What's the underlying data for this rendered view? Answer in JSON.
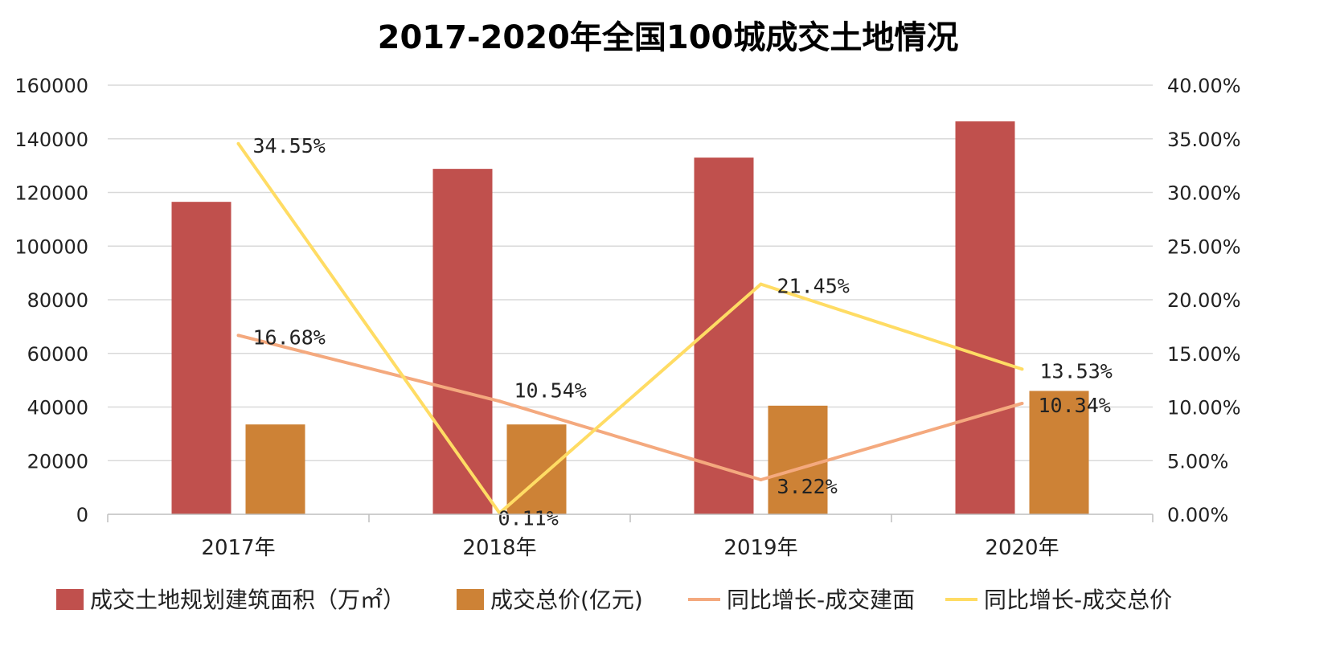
{
  "chart_data": {
    "type": "bar",
    "title": "2017-2020年全国100城成交土地情况",
    "categories": [
      "2017年",
      "2018年",
      "2019年",
      "2020年"
    ],
    "y_left": {
      "min": 0,
      "max": 160000,
      "ticks": [
        "0",
        "20000",
        "40000",
        "60000",
        "80000",
        "100000",
        "120000",
        "140000",
        "160000"
      ]
    },
    "y_right": {
      "min": 0,
      "max": 40,
      "ticks": [
        "0.00%",
        "5.00%",
        "10.00%",
        "15.00%",
        "20.00%",
        "25.00%",
        "30.00%",
        "35.00%",
        "40.00%"
      ]
    },
    "grid": true,
    "legend_position": "bottom",
    "series": [
      {
        "name": "成交土地规划建筑面积（万㎡）",
        "type": "bar",
        "axis": "left",
        "color": "#C0504D",
        "values": [
          116500,
          128800,
          133000,
          146500
        ]
      },
      {
        "name": "成交总价(亿元)",
        "type": "bar",
        "axis": "left",
        "color": "#CD8236",
        "values": [
          33500,
          33500,
          40500,
          46000
        ]
      },
      {
        "name": "同比增长-成交建面",
        "type": "line",
        "axis": "right",
        "color": "#F4A97E",
        "values": [
          16.68,
          10.54,
          3.22,
          10.34
        ],
        "labels": [
          "16.68%",
          "10.54%",
          "3.22%",
          "10.34%"
        ]
      },
      {
        "name": "同比增长-成交总价",
        "type": "line",
        "axis": "right",
        "color": "#FFDC64",
        "values": [
          34.55,
          0.11,
          21.45,
          13.53
        ],
        "labels": [
          "34.55%",
          "0.11%",
          "21.45%",
          "13.53%"
        ]
      }
    ]
  }
}
